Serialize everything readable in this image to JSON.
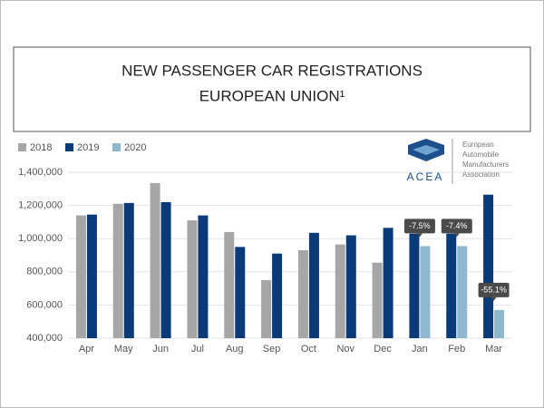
{
  "chart_data": {
    "type": "bar",
    "title": [
      "NEW PASSENGER CAR REGISTRATIONS",
      "EUROPEAN UNION¹"
    ],
    "logo": {
      "name": "ACEA",
      "text": [
        "European",
        "Automobile",
        "Manufacturers",
        "Association"
      ]
    },
    "categories": [
      "Apr",
      "May",
      "Jun",
      "Jul",
      "Aug",
      "Sep",
      "Oct",
      "Nov",
      "Dec",
      "Jan",
      "Feb",
      "Mar"
    ],
    "series": [
      {
        "name": "2018",
        "color": "#a6a6a6",
        "values": [
          1140000,
          1210000,
          1335000,
          1110000,
          1040000,
          750000,
          930000,
          965000,
          855000,
          null,
          null,
          null
        ]
      },
      {
        "name": "2019",
        "color": "#0b3a78",
        "values": [
          1145000,
          1215000,
          1220000,
          1140000,
          950000,
          910000,
          1035000,
          1020000,
          1065000,
          1030000,
          1030000,
          1265000
        ]
      },
      {
        "name": "2020",
        "color": "#8fb8cf",
        "values": [
          null,
          null,
          null,
          null,
          null,
          null,
          null,
          null,
          null,
          955000,
          955000,
          570000
        ]
      }
    ],
    "annotations": [
      {
        "category": "Jan",
        "text": "-7.5%"
      },
      {
        "category": "Feb",
        "text": "-7.4%"
      },
      {
        "category": "Mar",
        "text": "-55.1%"
      }
    ],
    "ylim": [
      400000,
      1400000
    ],
    "yticks": [
      {
        "value": 400000,
        "label": "400,000"
      },
      {
        "value": 600000,
        "label": "600,000"
      },
      {
        "value": 800000,
        "label": "800,000"
      },
      {
        "value": 1000000,
        "label": "1,000,000"
      },
      {
        "value": 1200000,
        "label": "1,200,000"
      },
      {
        "value": 1400000,
        "label": "1,400,000"
      }
    ],
    "grid": true,
    "legend": "top-left"
  }
}
